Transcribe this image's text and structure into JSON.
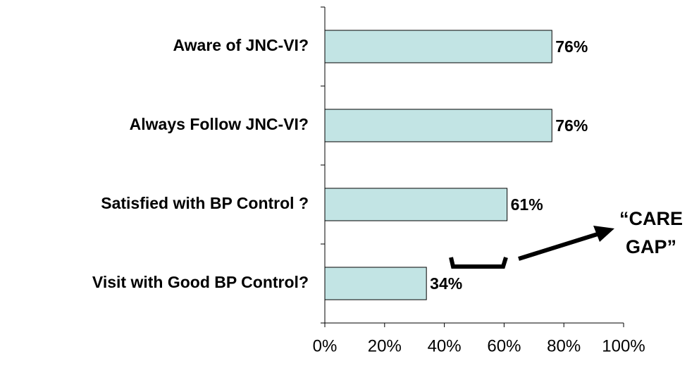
{
  "chart_data": {
    "type": "bar",
    "orientation": "horizontal",
    "categories": [
      "Aware of JNC-VI?",
      "Always Follow JNC-VI?",
      "Satisfied with BP Control ?",
      "Visit with Good BP Control?"
    ],
    "values": [
      76,
      76,
      61,
      34
    ],
    "value_labels": [
      "76%",
      "76%",
      "61%",
      "34%"
    ],
    "color": "#c2e4e4",
    "xlim": [
      0,
      100
    ],
    "xticks": [
      {
        "value": 0,
        "label": "0%"
      },
      {
        "value": 20,
        "label": "20%"
      },
      {
        "value": 40,
        "label": "40%"
      },
      {
        "value": 60,
        "label": "60%"
      },
      {
        "value": 80,
        "label": "80%"
      },
      {
        "value": 100,
        "label": "100%"
      }
    ],
    "annotation": [
      "“CARE",
      "GAP”"
    ]
  }
}
